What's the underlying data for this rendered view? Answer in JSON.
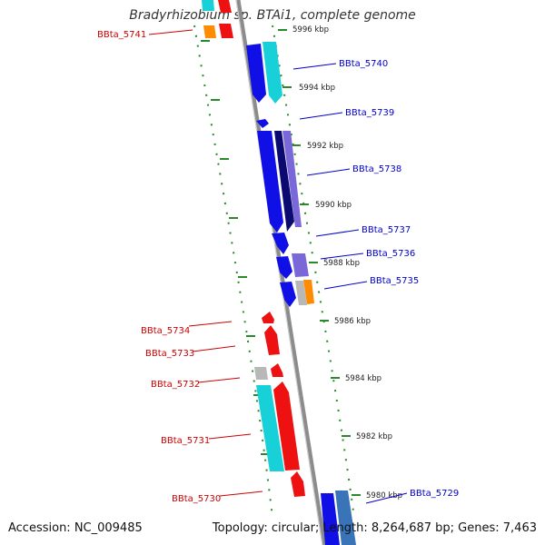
{
  "title": "Bradyrhizobium sp. BTAi1, complete genome",
  "footer": {
    "accession": "Accession: NC_009485",
    "summary": "Topology: circular; Length: 8,264,687 bp; Genes: 7,463"
  },
  "colors": {
    "backbone": "#8c8c8c",
    "tick": "#2a8a2a",
    "label_forward": "#0000cc",
    "label_reverse": "#cc0000"
  },
  "scale": {
    "ticks": [
      {
        "label": "5996 kbp"
      },
      {
        "label": "5994 kbp"
      },
      {
        "label": "5992 kbp"
      },
      {
        "label": "5990 kbp"
      },
      {
        "label": "5988 kbp"
      },
      {
        "label": "5986 kbp"
      },
      {
        "label": "5984 kbp"
      },
      {
        "label": "5982 kbp"
      },
      {
        "label": "5980 kbp"
      }
    ]
  },
  "gene_labels": {
    "forward": [
      {
        "name": "BBta_5740"
      },
      {
        "name": "BBta_5739"
      },
      {
        "name": "BBta_5738"
      },
      {
        "name": "BBta_5737"
      },
      {
        "name": "BBta_5736"
      },
      {
        "name": "BBta_5735"
      },
      {
        "name": "BBta_5729"
      }
    ],
    "reverse": [
      {
        "name": "BBta_5741"
      },
      {
        "name": "BBta_5734"
      },
      {
        "name": "BBta_5733"
      },
      {
        "name": "BBta_5732"
      },
      {
        "name": "BBta_5731"
      },
      {
        "name": "BBta_5730"
      }
    ]
  }
}
